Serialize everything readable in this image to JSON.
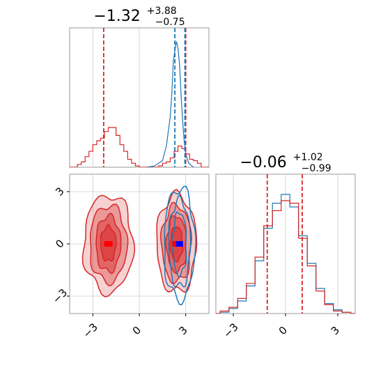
{
  "chart_data": [
    {
      "type": "histogram",
      "panel": "top-left",
      "title_main": "−1.32",
      "title_sup": "+3.88",
      "title_sub": "−0.75",
      "xlim": [
        -4.5,
        4.5
      ],
      "xticks": [
        -3,
        0,
        3
      ],
      "grid": true,
      "series": [
        {
          "color": "#d62728",
          "step_bins": [
            -4.5,
            -4.0,
            -3.75,
            -3.5,
            -3.25,
            -3.0,
            -2.75,
            -2.5,
            -2.25,
            -2.0,
            -1.75,
            -1.5,
            -1.25,
            -1.0,
            -0.75,
            -0.5,
            -0.25,
            0.0,
            0.5,
            1.0,
            1.25,
            1.5,
            1.75,
            2.0,
            2.25,
            2.5,
            2.75,
            3.0,
            3.25,
            3.5,
            3.75,
            4.0,
            4.5
          ],
          "counts": [
            0.0,
            0.02,
            0.04,
            0.08,
            0.12,
            0.17,
            0.2,
            0.22,
            0.27,
            0.3,
            0.3,
            0.24,
            0.17,
            0.12,
            0.06,
            0.03,
            0.01,
            0.0,
            0.0,
            0.0,
            0.01,
            0.03,
            0.04,
            0.07,
            0.12,
            0.16,
            0.14,
            0.1,
            0.06,
            0.05,
            0.03,
            0.0
          ]
        },
        {
          "color": "#1f77b4",
          "x": [
            0.5,
            1.0,
            1.5,
            1.75,
            2.0,
            2.1,
            2.2,
            2.3,
            2.4,
            2.5,
            2.6,
            2.7,
            2.8,
            2.9,
            3.0,
            3.2,
            3.5
          ],
          "counts": [
            0.0,
            0.01,
            0.05,
            0.16,
            0.38,
            0.55,
            0.8,
            0.88,
            0.95,
            0.9,
            0.78,
            0.55,
            0.35,
            0.2,
            0.1,
            0.03,
            0.0
          ]
        }
      ],
      "vlines": [
        {
          "x": -2.3,
          "color": "#d62728"
        },
        {
          "x": 2.3,
          "color": "#1f77b4"
        },
        {
          "x": 3.0,
          "color": "#d62728"
        },
        {
          "x": 2.95,
          "color": "#1f77b4"
        }
      ]
    },
    {
      "type": "contour",
      "panel": "bottom-left",
      "xlim": [
        -4.5,
        4.5
      ],
      "ylim": [
        -4.0,
        4.0
      ],
      "xticks": [
        -3,
        0,
        3
      ],
      "yticks": [
        -3,
        0,
        3
      ],
      "grid": true,
      "series": [
        {
          "color": "#d62728",
          "peaks": [
            {
              "x": -2.0,
              "y": 0.0,
              "marker_color": "#ff0000"
            },
            {
              "x": 2.4,
              "y": 0.0,
              "marker_color": "#ff0000"
            }
          ],
          "levels_rx": [
            1.6,
            1.2,
            0.8,
            0.5
          ],
          "levels_ry": [
            2.8,
            2.2,
            1.6,
            1.0
          ]
        },
        {
          "color": "#1f77b4",
          "peaks": [
            {
              "x": 2.6,
              "y": 0.0,
              "marker_color": "#0000ff"
            }
          ],
          "levels_rx": [
            1.0,
            0.7,
            0.45
          ],
          "levels_ry": [
            3.2,
            2.5,
            1.8
          ]
        }
      ]
    },
    {
      "type": "histogram",
      "panel": "bottom-right",
      "title_main": "−0.06",
      "title_sup": "+1.02",
      "title_sub": "−0.99",
      "xlim": [
        -4.0,
        4.0
      ],
      "xticks": [
        -3,
        0,
        3
      ],
      "grid": true,
      "series": [
        {
          "color": "#1f77b4",
          "x": [
            -4.0,
            -3.5,
            -3.0,
            -2.5,
            -2.0,
            -1.5,
            -1.0,
            -0.5,
            0.0,
            0.5,
            1.0,
            1.5,
            2.0,
            2.5,
            3.0,
            3.5,
            4.0
          ],
          "counts": [
            0.0,
            0.01,
            0.04,
            0.1,
            0.22,
            0.42,
            0.68,
            0.88,
            0.95,
            0.85,
            0.62,
            0.4,
            0.2,
            0.08,
            0.03,
            0.01,
            0.0
          ]
        },
        {
          "color": "#d62728",
          "x": [
            -4.0,
            -3.5,
            -3.0,
            -2.5,
            -2.0,
            -1.5,
            -1.0,
            -0.5,
            0.0,
            0.5,
            1.0,
            1.5,
            2.0,
            2.5,
            3.0,
            3.5,
            4.0
          ],
          "counts": [
            0.0,
            0.02,
            0.05,
            0.12,
            0.24,
            0.45,
            0.7,
            0.82,
            0.9,
            0.88,
            0.6,
            0.38,
            0.18,
            0.07,
            0.02,
            0.01,
            0.0
          ]
        }
      ],
      "vlines": [
        {
          "x": -1.05,
          "color": "#d62728"
        },
        {
          "x": 0.96,
          "color": "#d62728"
        }
      ]
    }
  ],
  "colors": {
    "red": "#d62728",
    "blue": "#1f77b4",
    "axis": "#000000",
    "grid": "#cccccc"
  }
}
